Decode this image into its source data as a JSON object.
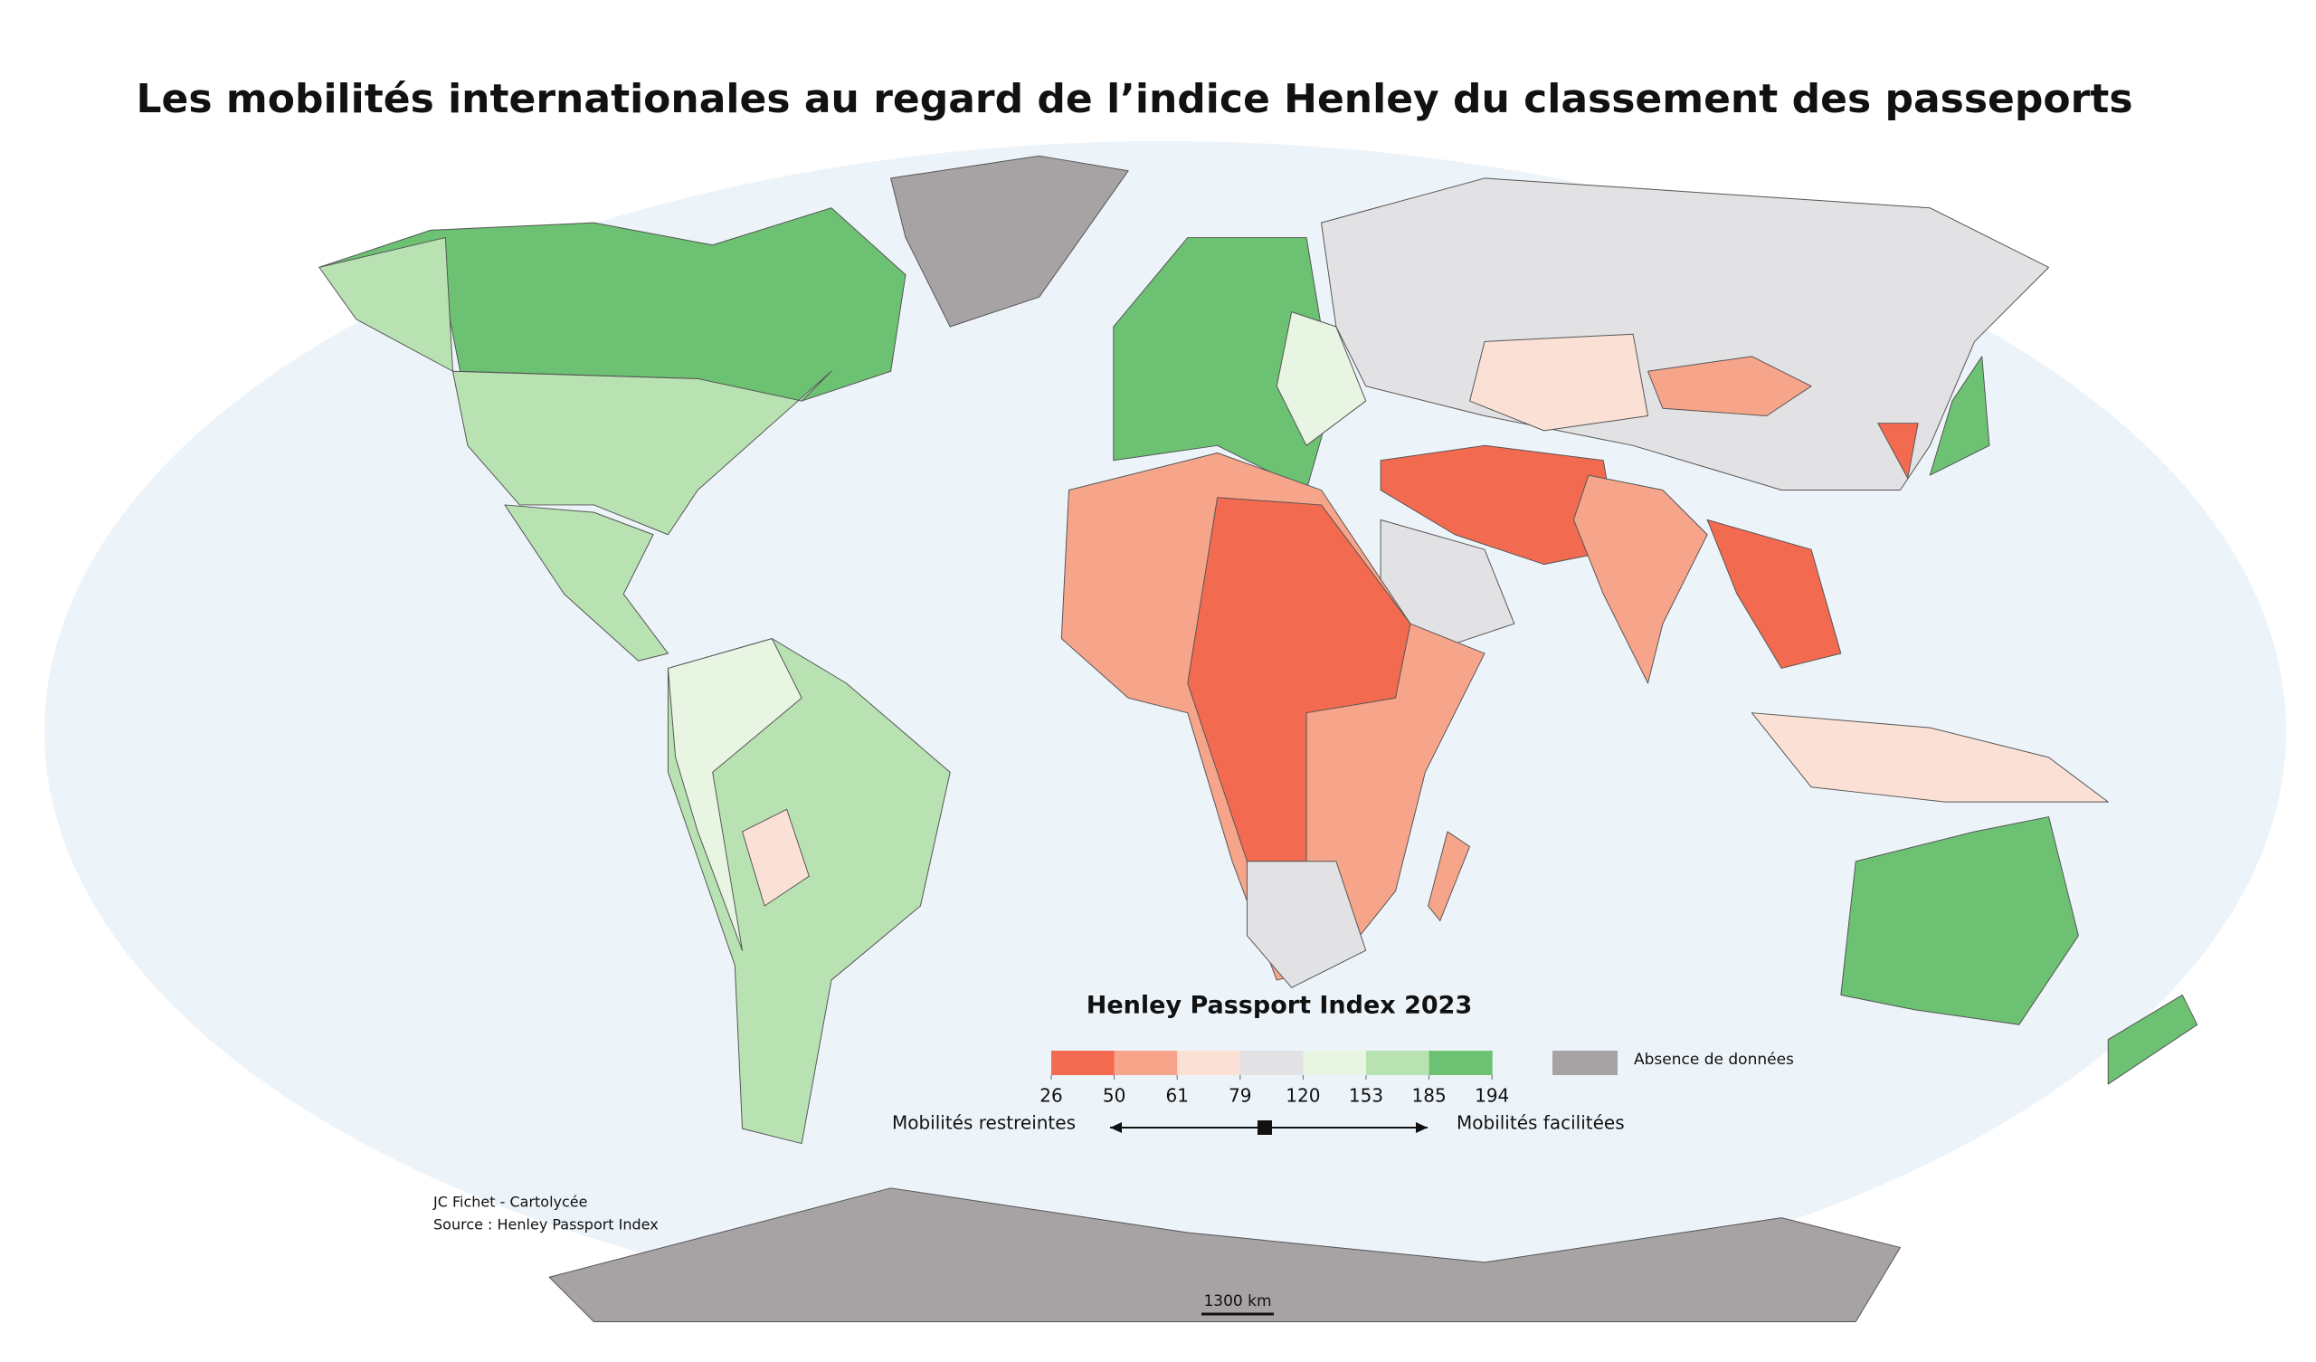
{
  "title": "Les mobilités internationales au regard de l’indice Henley du classement des passeports",
  "legend": {
    "title": "Henley Passport Index 2023",
    "class_colors": [
      "#f26a4f",
      "#f7a58a",
      "#fbe0d6",
      "#e2e2e4",
      "#e8f5e3",
      "#b9e2b3",
      "#6cc173"
    ],
    "breaks": [
      26,
      50,
      61,
      79,
      120,
      153,
      185,
      194
    ],
    "no_data": {
      "label": "Absence de données",
      "color": "#a7a3a5"
    },
    "low_label": "Mobilités restreintes",
    "high_label": "Mobilités facilitées"
  },
  "credits": [
    "JC Fichet - Cartolycée",
    "Source : Henley Passport Index"
  ],
  "scale_bar": "1300 km"
}
